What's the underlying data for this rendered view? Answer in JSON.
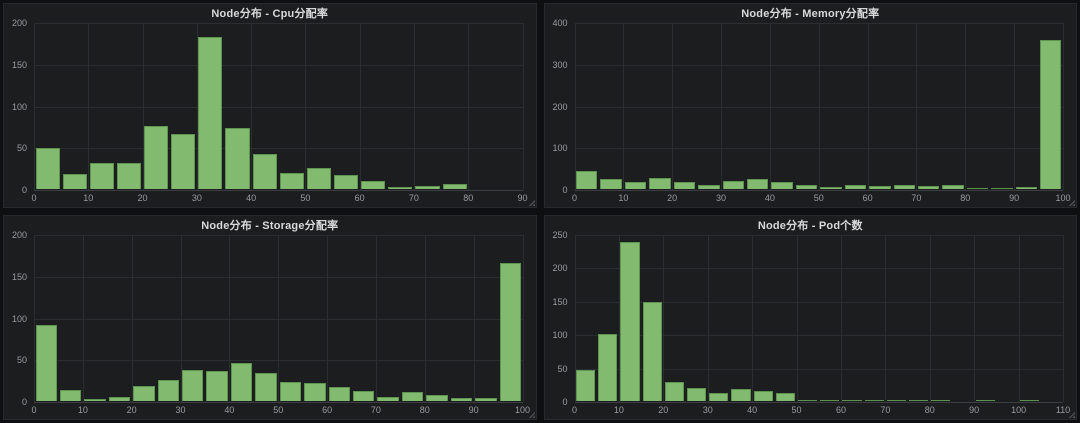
{
  "theme": {
    "page_bg": "#0e0f10",
    "panel_bg": "#1b1d1f",
    "panel_border": "#27292c",
    "grid_color": "#2b2d30",
    "baseline_color": "#3c3e41",
    "bar_fill": "#82ba70",
    "bar_border": "#5e9350",
    "title_color": "#d8d9da",
    "axis_label_color": "#9a9da0"
  },
  "chart_data": [
    {
      "title": "Node分布 - Cpu分配率",
      "type": "bar",
      "bin_width": 5,
      "x_start": 0,
      "values": [
        50,
        19,
        32,
        32,
        77,
        67,
        183,
        74,
        43,
        20,
        26,
        18,
        11,
        4,
        5,
        7
      ],
      "xlim": [
        0,
        90
      ],
      "ylim": [
        0,
        200
      ],
      "xticks": [
        0,
        10,
        20,
        30,
        40,
        50,
        60,
        70,
        80,
        90
      ],
      "yticks": [
        0,
        50,
        100,
        150,
        200
      ],
      "xlabel": "",
      "ylabel": "",
      "grid": true,
      "legend": "none"
    },
    {
      "title": "Node分布 - Memory分配率",
      "type": "bar",
      "bin_width": 5,
      "x_start": 0,
      "values": [
        46,
        27,
        19,
        28,
        19,
        12,
        21,
        26,
        19,
        11,
        7,
        13,
        9,
        11,
        10,
        11,
        5,
        3,
        8,
        360
      ],
      "xlim": [
        0,
        100
      ],
      "ylim": [
        0,
        400
      ],
      "xticks": [
        0,
        10,
        20,
        30,
        40,
        50,
        60,
        70,
        80,
        90,
        100
      ],
      "yticks": [
        0,
        100,
        200,
        300,
        400
      ],
      "xlabel": "",
      "ylabel": "",
      "grid": true,
      "legend": "none"
    },
    {
      "title": "Node分布 - Storage分配率",
      "type": "bar",
      "bin_width": 5,
      "x_start": 0,
      "values": [
        92,
        14,
        4,
        6,
        19,
        26,
        38,
        37,
        47,
        35,
        24,
        23,
        18,
        13,
        6,
        12,
        8,
        5,
        5,
        167
      ],
      "xlim": [
        0,
        100
      ],
      "ylim": [
        0,
        200
      ],
      "xticks": [
        0,
        10,
        20,
        30,
        40,
        50,
        60,
        70,
        80,
        90,
        100
      ],
      "yticks": [
        0,
        50,
        100,
        150,
        200
      ],
      "xlabel": "",
      "ylabel": "",
      "grid": true,
      "legend": "none"
    },
    {
      "title": "Node分布 - Pod个数",
      "type": "bar",
      "bin_width": 5,
      "x_start": 0,
      "values": [
        48,
        102,
        240,
        150,
        30,
        21,
        14,
        19,
        16,
        13,
        3,
        1,
        1,
        3,
        1,
        1,
        1,
        0,
        1,
        0,
        1
      ],
      "xlim": [
        0,
        110
      ],
      "ylim": [
        0,
        250
      ],
      "xticks": [
        0,
        10,
        20,
        30,
        40,
        50,
        60,
        70,
        80,
        90,
        100,
        110
      ],
      "yticks": [
        0,
        50,
        100,
        150,
        200,
        250
      ],
      "xlabel": "",
      "ylabel": "",
      "grid": true,
      "legend": "none"
    }
  ]
}
